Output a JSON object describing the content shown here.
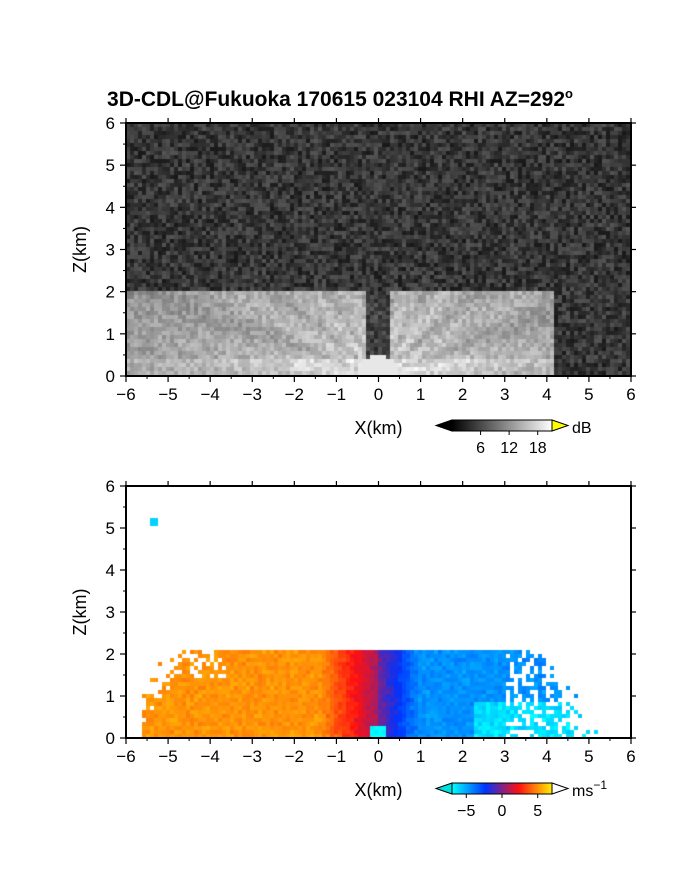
{
  "figure_title": "3D-CDL@Fukuoka 170615 023104 RHI AZ=292",
  "title_superscript": "o",
  "chart_data": [
    {
      "type": "heatmap",
      "name": "backscatter",
      "xlabel": "X(km)",
      "ylabel": "Z(km)",
      "xlim": [
        -6,
        6
      ],
      "ylim": [
        0,
        6
      ],
      "xticks": [
        "-6",
        "-5",
        "-4",
        "-3",
        "-2",
        "-1",
        "0",
        "1",
        "2",
        "3",
        "4",
        "5",
        "6"
      ],
      "yticks": [
        "0",
        "1",
        "2",
        "3",
        "4",
        "5",
        "6"
      ],
      "grid": false,
      "colorbar": {
        "unit": "dB",
        "unit_superscript": "",
        "ticks": [
          "6",
          "12",
          "18"
        ],
        "tick_values": [
          6,
          12,
          18
        ],
        "range": [
          0,
          21
        ],
        "colors": [
          "#000000",
          "#ffffff"
        ],
        "extend_max_color": "#ffff00"
      },
      "field": {
        "signal_top_km": 2.05,
        "signal_xlim": [
          -6,
          4.2
        ],
        "surface_layer_top_km": 0.45
      }
    },
    {
      "type": "heatmap",
      "name": "doppler_velocity",
      "xlabel": "X(km)",
      "ylabel": "Z(km)",
      "xlim": [
        -6,
        6
      ],
      "ylim": [
        0,
        6
      ],
      "xticks": [
        "-6",
        "-5",
        "-4",
        "-3",
        "-2",
        "-1",
        "0",
        "1",
        "2",
        "3",
        "4",
        "5",
        "6"
      ],
      "yticks": [
        "0",
        "1",
        "2",
        "3",
        "4",
        "5",
        "6"
      ],
      "grid": false,
      "colorbar": {
        "unit": "ms",
        "unit_superscript": "-1",
        "ticks": [
          "-5",
          "0",
          "5"
        ],
        "tick_values": [
          -5,
          0,
          5
        ],
        "range": [
          -7,
          7
        ],
        "colors": [
          "#00ffff",
          "#0033ff",
          "#ff1010",
          "#ffee00"
        ],
        "extend_min_color": "#00e0e0",
        "extend_max_color": "#ffffff"
      },
      "field": {
        "signal_top_km": 2.1,
        "signal_xlim": [
          -5.6,
          5.3
        ],
        "velocity_sign": "positive for x<0, negative for x>0",
        "isolated_echo": {
          "x": -5.35,
          "z": 5.15,
          "value": -6
        }
      }
    }
  ]
}
